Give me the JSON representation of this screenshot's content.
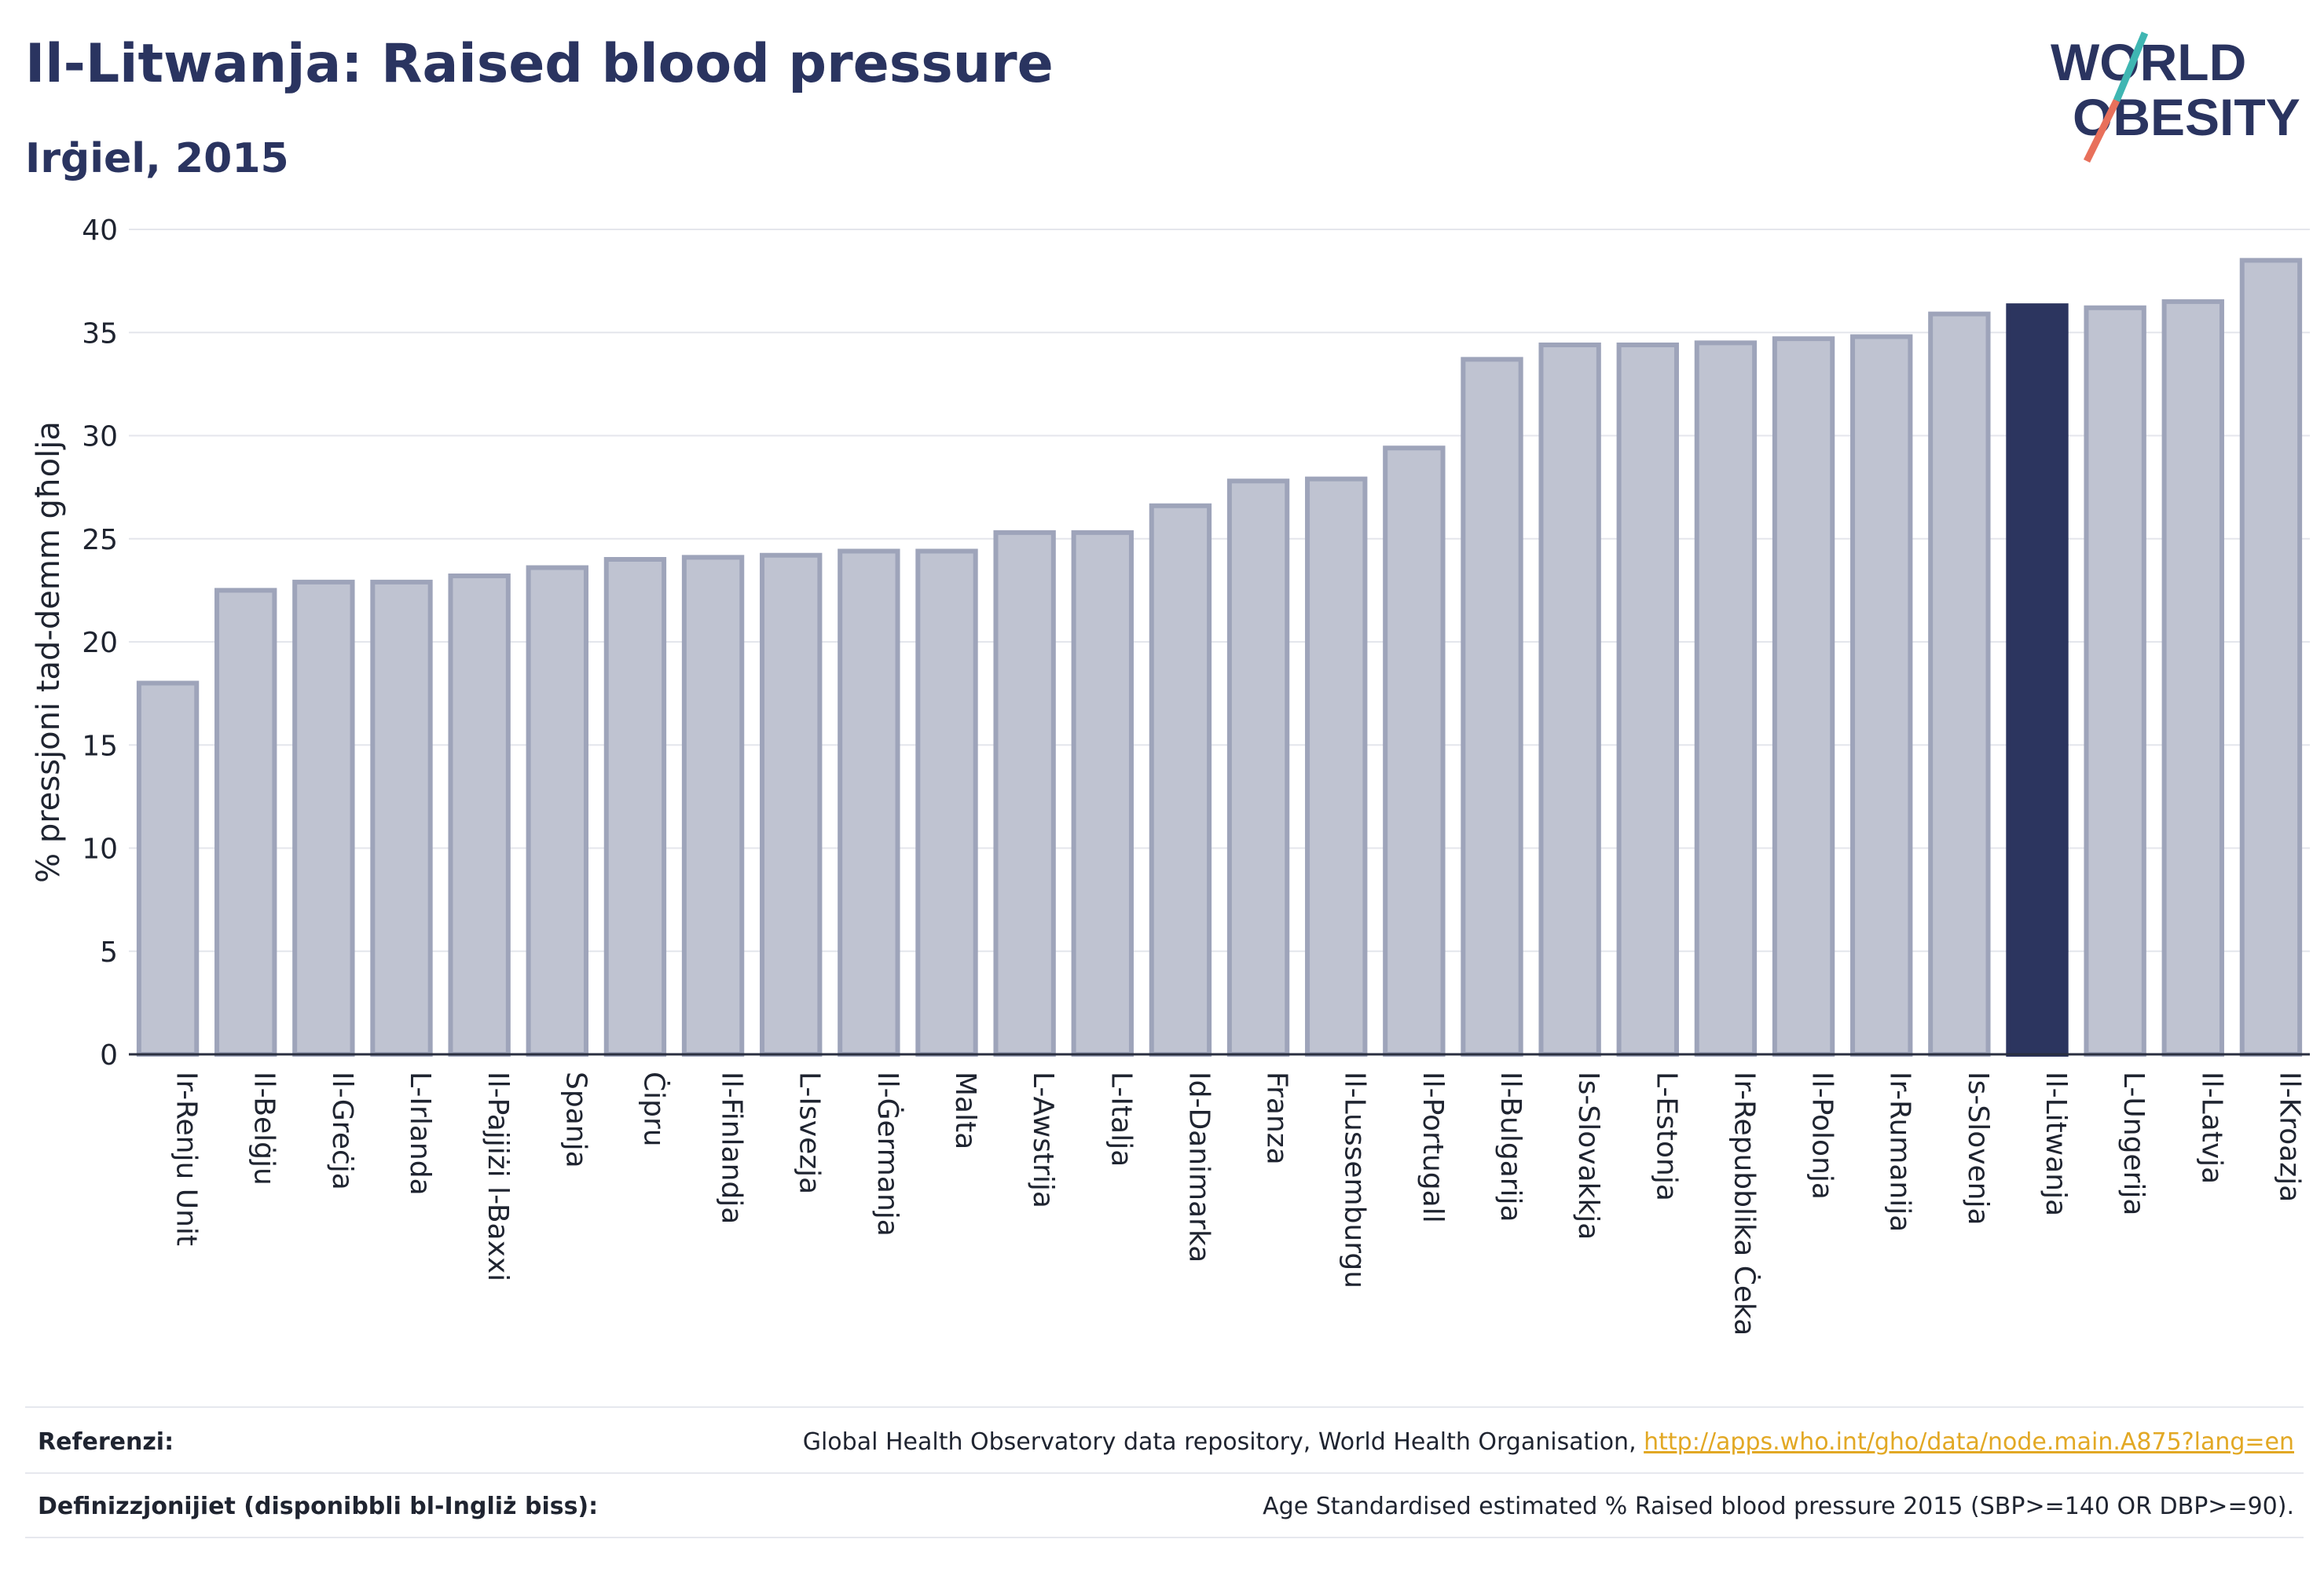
{
  "header": {
    "title": "Il-Litwanja: Raised blood pressure",
    "subtitle": "Irġiel, 2015"
  },
  "logo": {
    "line1": "WORLD",
    "line2": "OBESITY"
  },
  "chart_data": {
    "type": "bar",
    "ylabel": "% pressjoni tad-demm għolja",
    "xlabel": "",
    "ylim": [
      0,
      40
    ],
    "yticks": [
      0,
      5,
      10,
      15,
      20,
      25,
      30,
      35,
      40
    ],
    "grid": true,
    "highlight": "Il-Litwanja",
    "colors": {
      "bar": "#bfc3d1",
      "bar_border": "#9ea4ba",
      "highlight": "#2c355f",
      "grid": "#e4e6ec",
      "axis": "#2a2f40"
    },
    "categories": [
      "Ir-Renju Unit",
      "Il-Belġju",
      "Il-Greċja",
      "L-Irlanda",
      "Il-Pajjiżi l-Baxxi",
      "Spanja",
      "Ċipru",
      "Il-Finlandja",
      "L-Isvezja",
      "Il-Ġermanja",
      "Malta",
      "L-Awstrija",
      "L-Italja",
      "Id-Danimarka",
      "Franza",
      "Il-Lussemburgu",
      "Il-Portugall",
      "Il-Bulgarija",
      "Is-Slovakkja",
      "L-Estonja",
      "Ir-Repubblika Ċeka",
      "Il-Polonja",
      "Ir-Rumanija",
      "Is-Slovenja",
      "Il-Litwanja",
      "L-Ungerija",
      "Il-Latvja",
      "Il-Kroazja"
    ],
    "values": [
      18.0,
      22.5,
      22.9,
      22.9,
      23.2,
      23.6,
      24.0,
      24.1,
      24.2,
      24.4,
      24.4,
      25.3,
      25.3,
      26.6,
      27.8,
      27.9,
      29.4,
      33.7,
      34.4,
      34.4,
      34.5,
      34.7,
      34.8,
      35.9,
      36.3,
      36.2,
      36.5,
      38.5
    ]
  },
  "footer": {
    "ref_label": "Referenzi:",
    "ref_text": "Global Health Observatory data repository, World Health Organisation, ",
    "ref_link": "http://apps.who.int/gho/data/node.main.A875?lang=en",
    "def_label": "Definizzjonijiet (disponibbli bl-Ingliż biss):",
    "def_text": "Age Standardised estimated % Raised blood pressure 2015 (SBP>=140 OR DBP>=90)."
  }
}
